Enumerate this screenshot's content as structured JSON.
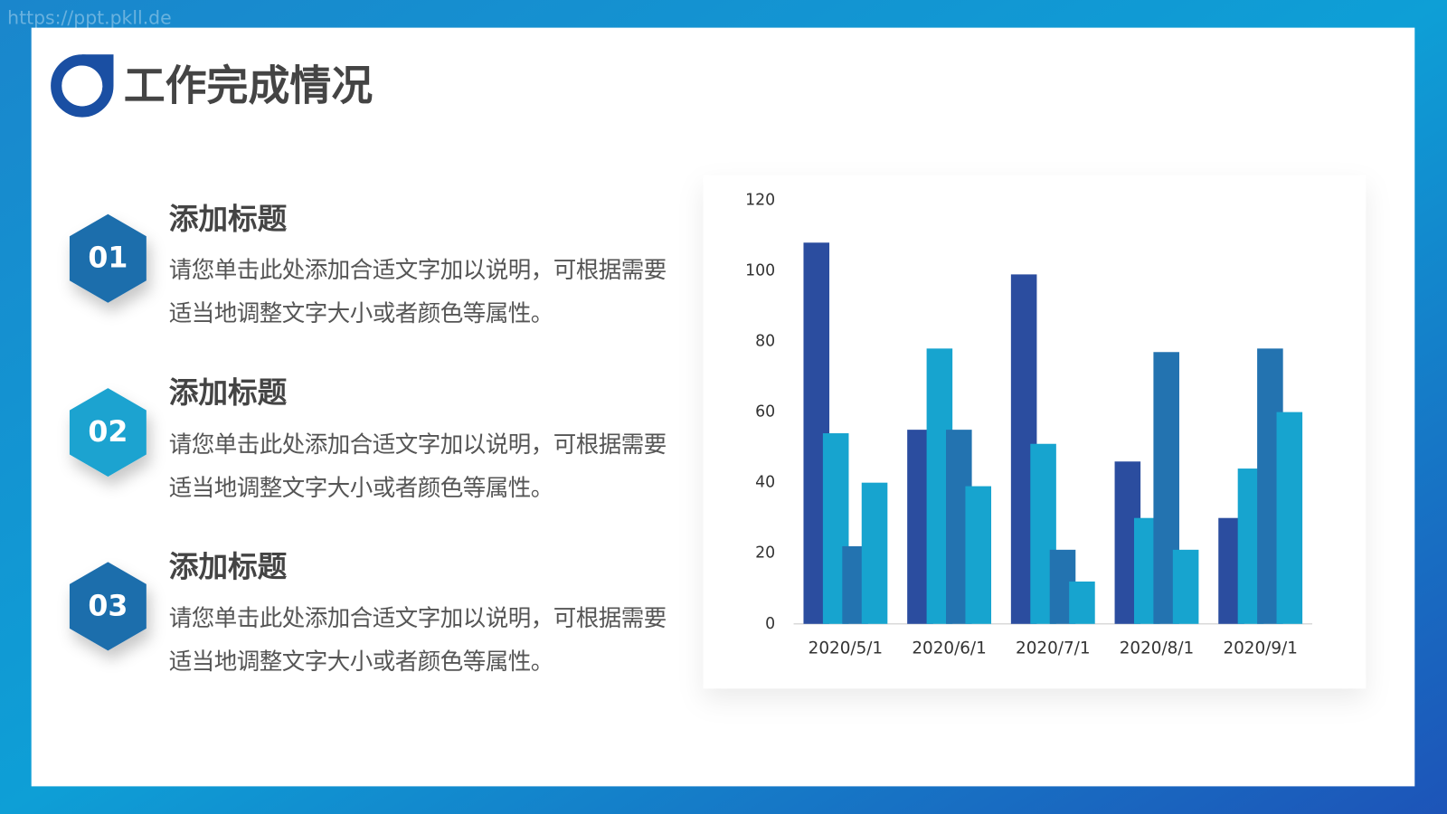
{
  "watermark": "https://ppt.pkll.de",
  "title": "工作完成情况",
  "items": [
    {
      "number": "01",
      "heading": "添加标题",
      "text": "请您单击此处添加合适文字加以说明，可根据需要适当地调整文字大小或者颜色等属性。"
    },
    {
      "number": "02",
      "heading": "添加标题",
      "text": "请您单击此处添加合适文字加以说明，可根据需要适当地调整文字大小或者颜色等属性。"
    },
    {
      "number": "03",
      "heading": "添加标题",
      "text": "请您单击此处添加合适文字加以说明，可根据需要适当地调整文字大小或者颜色等属性。"
    }
  ],
  "chart_data": {
    "type": "bar",
    "categories": [
      "2020/5/1",
      "2020/6/1",
      "2020/7/1",
      "2020/8/1",
      "2020/9/1"
    ],
    "series": [
      {
        "color": "#2b4d9f",
        "values": [
          108,
          55,
          99,
          46,
          30
        ]
      },
      {
        "color": "#17a4cf",
        "values": [
          54,
          78,
          51,
          30,
          44
        ]
      },
      {
        "color": "#2373b0",
        "values": [
          22,
          55,
          21,
          77,
          78
        ]
      },
      {
        "color": "#17a4cf",
        "values": [
          40,
          39,
          12,
          21,
          60
        ]
      }
    ],
    "ylim": [
      0,
      120
    ],
    "yticks": [
      0,
      20,
      40,
      60,
      80,
      100,
      120
    ],
    "grid": false
  }
}
